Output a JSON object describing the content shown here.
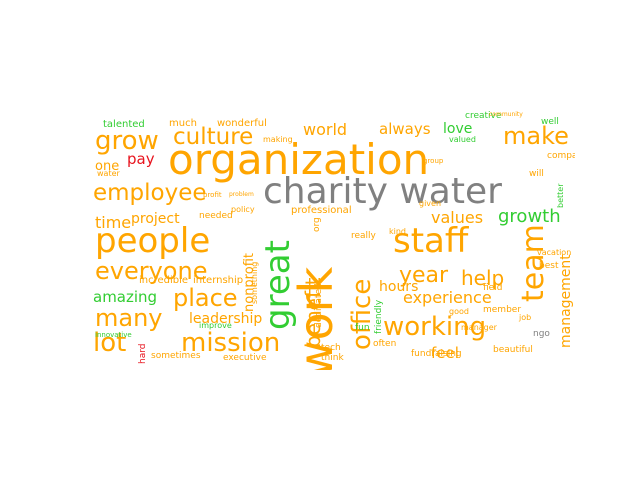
{
  "palette": {
    "orange": "#ffa500",
    "green": "#32cd32",
    "gray": "#808080",
    "red": "#e8141e",
    "background": "#ffffff"
  },
  "words": [
    {
      "text": "organization",
      "color": "orange"
    },
    {
      "text": "charity water",
      "color": "gray"
    },
    {
      "text": "people",
      "color": "orange"
    },
    {
      "text": "staff",
      "color": "orange"
    },
    {
      "text": "work",
      "color": "orange"
    },
    {
      "text": "great",
      "color": "green"
    },
    {
      "text": "culture",
      "color": "orange"
    },
    {
      "text": "grow",
      "color": "orange"
    },
    {
      "text": "employee",
      "color": "orange"
    },
    {
      "text": "everyone",
      "color": "orange"
    },
    {
      "text": "working",
      "color": "orange"
    },
    {
      "text": "mission",
      "color": "orange"
    },
    {
      "text": "team",
      "color": "orange"
    },
    {
      "text": "make",
      "color": "orange"
    },
    {
      "text": "place",
      "color": "orange"
    },
    {
      "text": "many",
      "color": "orange"
    },
    {
      "text": "lot",
      "color": "orange"
    },
    {
      "text": "office",
      "color": "orange"
    },
    {
      "text": "benefit",
      "color": "orange"
    },
    {
      "text": "year",
      "color": "orange"
    },
    {
      "text": "help",
      "color": "orange"
    },
    {
      "text": "world",
      "color": "orange"
    },
    {
      "text": "always",
      "color": "orange"
    },
    {
      "text": "love",
      "color": "green"
    },
    {
      "text": "time",
      "color": "orange"
    },
    {
      "text": "project",
      "color": "orange"
    },
    {
      "text": "values",
      "color": "orange"
    },
    {
      "text": "growth",
      "color": "green"
    },
    {
      "text": "hours",
      "color": "orange"
    },
    {
      "text": "experience",
      "color": "orange"
    },
    {
      "text": "amazing",
      "color": "green"
    },
    {
      "text": "leadership",
      "color": "orange"
    },
    {
      "text": "feel",
      "color": "orange"
    },
    {
      "text": "management",
      "color": "orange"
    },
    {
      "text": "nonprofit",
      "color": "orange"
    },
    {
      "text": "pay",
      "color": "red"
    },
    {
      "text": "one",
      "color": "orange"
    },
    {
      "text": "talented",
      "color": "green"
    },
    {
      "text": "much",
      "color": "orange"
    },
    {
      "text": "wonderful",
      "color": "orange"
    },
    {
      "text": "incredible",
      "color": "orange"
    },
    {
      "text": "internship",
      "color": "orange"
    },
    {
      "text": "professional",
      "color": "orange"
    },
    {
      "text": "needed",
      "color": "orange"
    },
    {
      "text": "policy",
      "color": "orange"
    },
    {
      "text": "org",
      "color": "orange"
    },
    {
      "text": "dedicated",
      "color": "orange"
    },
    {
      "text": "friendly",
      "color": "green"
    },
    {
      "text": "kind",
      "color": "orange"
    },
    {
      "text": "really",
      "color": "orange"
    },
    {
      "text": "tech",
      "color": "orange"
    },
    {
      "text": "think",
      "color": "orange"
    },
    {
      "text": "fun",
      "color": "green"
    },
    {
      "text": "often",
      "color": "orange"
    },
    {
      "text": "member",
      "color": "orange"
    },
    {
      "text": "fundraising",
      "color": "orange"
    },
    {
      "text": "beautiful",
      "color": "orange"
    },
    {
      "text": "best",
      "color": "orange"
    },
    {
      "text": "vacation",
      "color": "orange"
    },
    {
      "text": "field",
      "color": "orange"
    },
    {
      "text": "job",
      "color": "orange"
    },
    {
      "text": "good",
      "color": "orange"
    },
    {
      "text": "manager",
      "color": "orange"
    },
    {
      "text": "company",
      "color": "orange"
    },
    {
      "text": "will",
      "color": "orange"
    },
    {
      "text": "creative",
      "color": "green"
    },
    {
      "text": "valued",
      "color": "green"
    },
    {
      "text": "well",
      "color": "green"
    },
    {
      "text": "given",
      "color": "orange"
    },
    {
      "text": "executive",
      "color": "orange"
    },
    {
      "text": "sometimes",
      "color": "orange"
    },
    {
      "text": "hard",
      "color": "red"
    },
    {
      "text": "improve",
      "color": "green"
    },
    {
      "text": "something",
      "color": "orange"
    },
    {
      "text": "innovative",
      "color": "green"
    },
    {
      "text": "water",
      "color": "orange"
    },
    {
      "text": "better",
      "color": "green"
    },
    {
      "text": "making",
      "color": "orange"
    },
    {
      "text": "profit",
      "color": "orange"
    },
    {
      "text": "ngo",
      "color": "gray"
    },
    {
      "text": "community",
      "color": "orange"
    },
    {
      "text": "group",
      "color": "orange"
    },
    {
      "text": "problem",
      "color": "orange"
    }
  ]
}
